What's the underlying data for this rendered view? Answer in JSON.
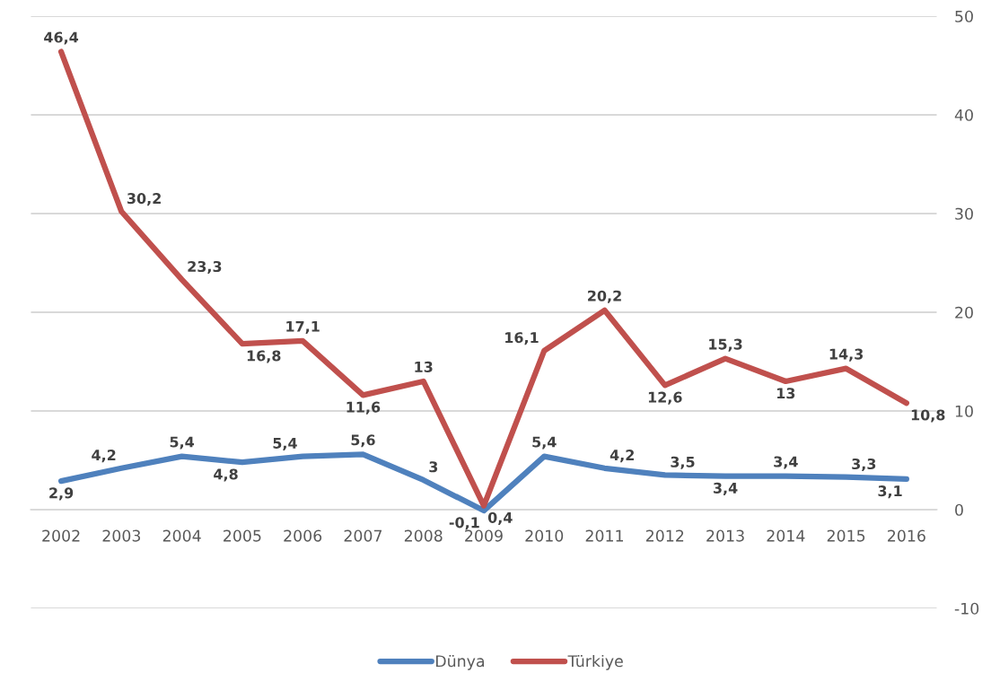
{
  "chart_data": {
    "type": "line",
    "categories": [
      "2002",
      "2003",
      "2004",
      "2005",
      "2006",
      "2007",
      "2008",
      "2009",
      "2010",
      "2011",
      "2012",
      "2013",
      "2014",
      "2015",
      "2016"
    ],
    "series": [
      {
        "name": "Dünya",
        "color": "#4f81bd",
        "values": [
          2.9,
          4.2,
          5.4,
          4.8,
          5.4,
          5.6,
          3,
          -0.1,
          5.4,
          4.2,
          3.5,
          3.4,
          3.4,
          3.3,
          3.1
        ],
        "value_labels": [
          "2,9",
          "4,2",
          "5,4",
          "4,8",
          "5,4",
          "5,6",
          "3",
          "-0,1",
          "5,4",
          "4,2",
          "3,5",
          "3,4",
          "3,4",
          "3,3",
          "3,1"
        ]
      },
      {
        "name": "Türkiye",
        "color": "#c0504d",
        "values": [
          46.4,
          30.2,
          23.3,
          16.8,
          17.1,
          11.6,
          13,
          0.4,
          16.1,
          20.2,
          12.6,
          15.3,
          13,
          14.3,
          10.8
        ],
        "value_labels": [
          "46,4",
          "30,2",
          "23,3",
          "16,8",
          "17,1",
          "11,6",
          "13",
          "0,4",
          "16,1",
          "20,2",
          "12,6",
          "15,3",
          "13",
          "14,3",
          "10,8"
        ]
      }
    ],
    "ylim": [
      -10,
      50
    ],
    "yticks": [
      -10,
      0,
      10,
      20,
      30,
      40,
      50
    ],
    "grid": "y",
    "legend": "bottom",
    "marker": "none",
    "line_style": "solid"
  }
}
